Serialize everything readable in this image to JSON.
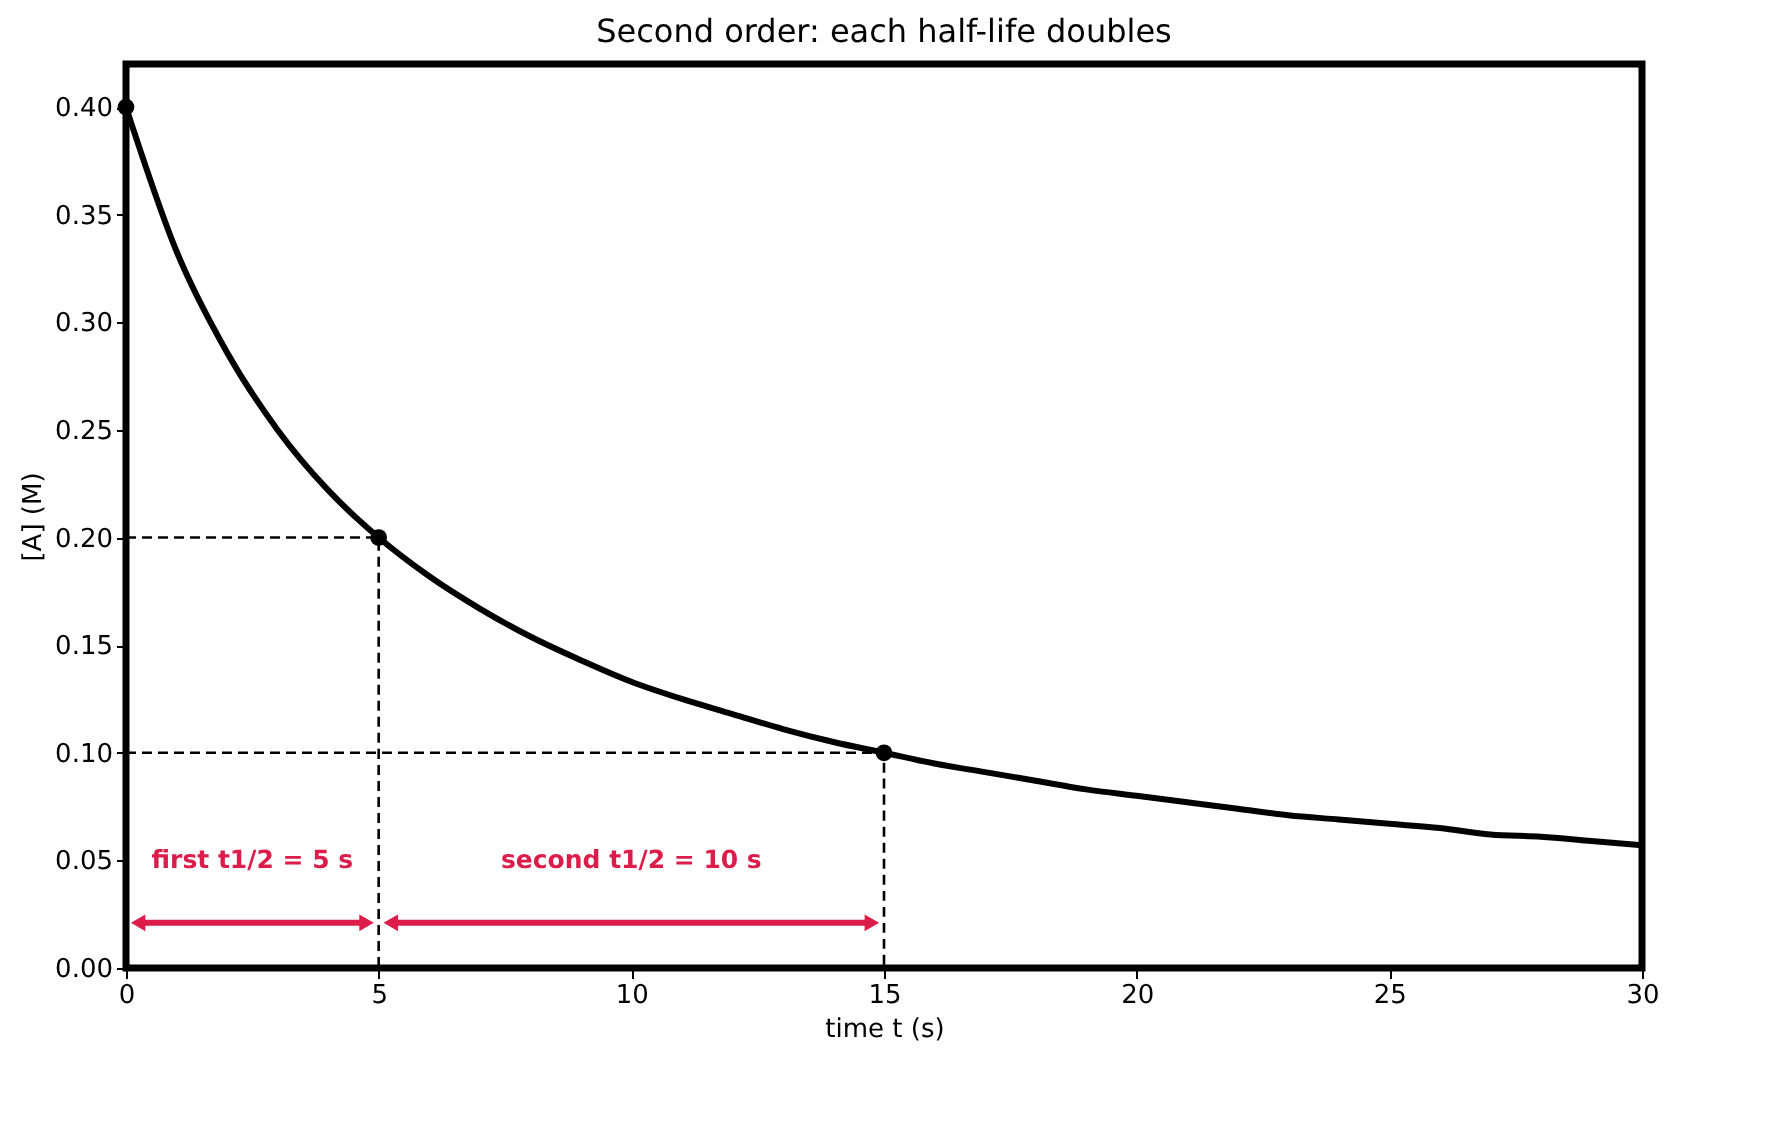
{
  "chart_data": {
    "type": "line",
    "title": "Second order: each half-life doubles",
    "xlabel": "time  t  (s)",
    "ylabel": "[A]  (M)",
    "xlim": [
      0,
      30
    ],
    "ylim": [
      0,
      0.42
    ],
    "xticks": [
      0,
      5,
      10,
      15,
      20,
      25,
      30
    ],
    "yticks": [
      {
        "value": 0,
        "label": "0.00"
      },
      {
        "value": 0.05,
        "label": "0.05"
      },
      {
        "value": 0.1,
        "label": "0.10"
      },
      {
        "value": 0.15,
        "label": "0.15"
      },
      {
        "value": 0.2,
        "label": "0.20"
      },
      {
        "value": 0.25,
        "label": "0.25"
      },
      {
        "value": 0.3,
        "label": "0.30"
      },
      {
        "value": 0.35,
        "label": "0.35"
      },
      {
        "value": 0.4,
        "label": "0.40"
      }
    ],
    "grid": false,
    "series": [
      {
        "color": "#000000",
        "marker": "none",
        "line_style": "solid",
        "x": [
          0,
          1,
          2,
          3,
          4,
          5,
          6,
          7,
          8,
          9,
          10,
          11,
          12,
          13,
          14,
          15,
          16,
          17,
          18,
          19,
          20,
          21,
          22,
          23,
          24,
          25,
          26,
          27,
          28,
          29,
          30
        ],
        "values": [
          0.4,
          0.333,
          0.286,
          0.25,
          0.222,
          0.2,
          0.182,
          0.167,
          0.154,
          0.143,
          0.133,
          0.125,
          0.118,
          0.111,
          0.105,
          0.1,
          0.095,
          0.091,
          0.087,
          0.083,
          0.08,
          0.077,
          0.074,
          0.071,
          0.069,
          0.067,
          0.065,
          0.062,
          0.061,
          0.059,
          0.057
        ]
      },
      {
        "type": "scatter",
        "color": "#000000",
        "marker": "circle",
        "x": [
          0,
          5,
          15
        ],
        "values": [
          0.4,
          0.2,
          0.1
        ]
      },
      {
        "type": "line",
        "color": "#000000",
        "line_style": "dashed",
        "marker": "none",
        "x": [
          0,
          5,
          5
        ],
        "values": [
          0.2,
          0.2,
          0
        ]
      },
      {
        "type": "line",
        "color": "#000000",
        "line_style": "dashed",
        "marker": "none",
        "x": [
          0,
          15,
          15
        ],
        "values": [
          0.1,
          0.1,
          0
        ]
      }
    ],
    "annotations": [
      "first t1/2 = 5 s",
      "second t1/2 = 10 s"
    ]
  }
}
